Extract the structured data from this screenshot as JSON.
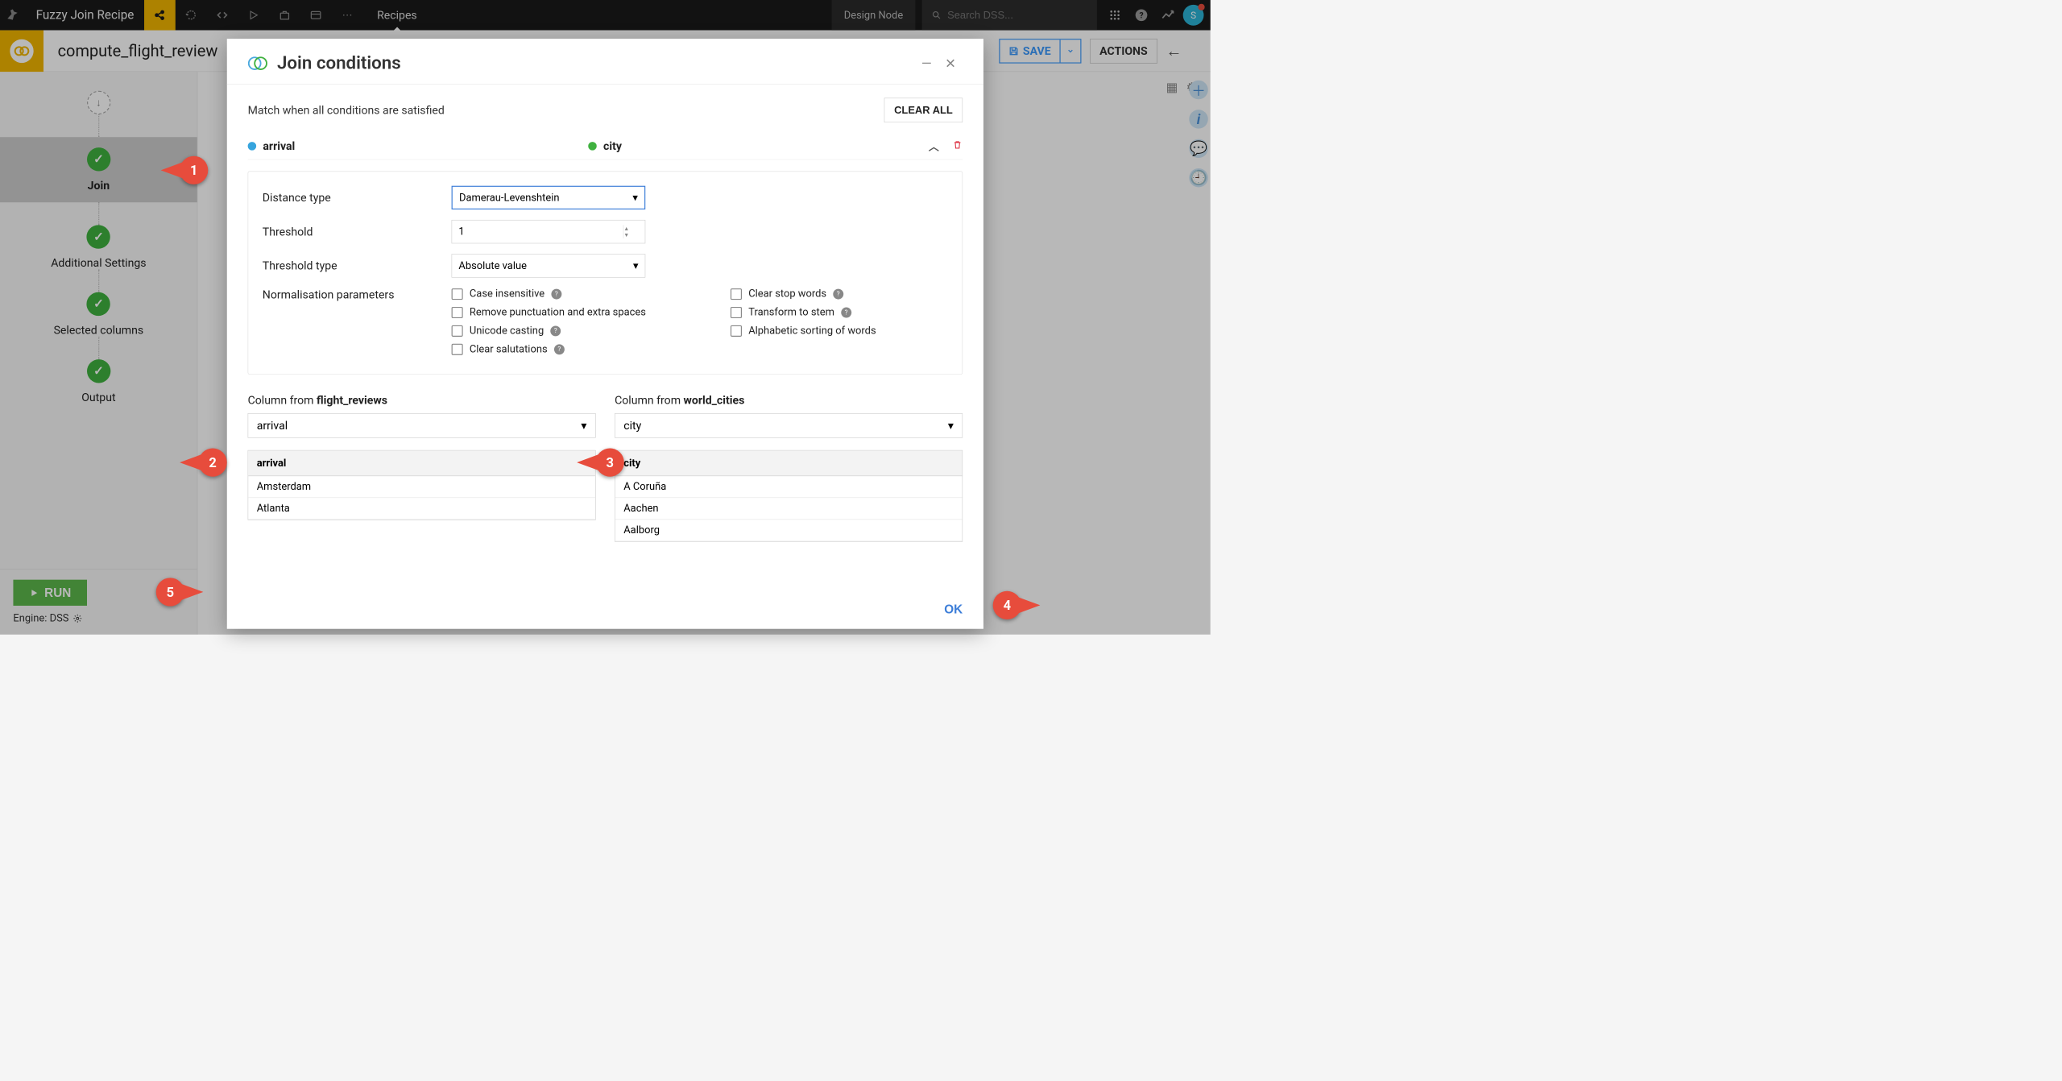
{
  "topbar": {
    "title": "Fuzzy Join Recipe",
    "recipes": "Recipes",
    "design_node": "Design Node",
    "search_placeholder": "Search DSS...",
    "user_initial": "S"
  },
  "subbar": {
    "recipe_title": "compute_flight_review",
    "save": "SAVE",
    "actions": "ACTIONS"
  },
  "sidebar": {
    "steps": [
      "Join",
      "Additional Settings",
      "Selected columns",
      "Output"
    ],
    "active_index": 0,
    "run": "RUN",
    "engine": "Engine: DSS"
  },
  "modal": {
    "title": "Join conditions",
    "subtitle": "Match when all conditions are satisfied",
    "clear_all": "CLEAR ALL",
    "left_col": "arrival",
    "right_col": "city",
    "distance_type_label": "Distance type",
    "distance_type_value": "Damerau-Levenshtein",
    "threshold_label": "Threshold",
    "threshold_value": "1",
    "threshold_type_label": "Threshold type",
    "threshold_type_value": "Absolute value",
    "norm_label": "Normalisation parameters",
    "norm_left": [
      "Case insensitive",
      "Remove punctuation and extra spaces",
      "Unicode casting",
      "Clear salutations"
    ],
    "norm_left_help": [
      true,
      false,
      true,
      true
    ],
    "norm_right": [
      "Clear stop words",
      "Transform to stem",
      "Alphabetic sorting of words"
    ],
    "norm_right_help": [
      true,
      true,
      false
    ],
    "column_from": "Column from",
    "left_dataset": "flight_reviews",
    "right_dataset": "world_cities",
    "left_sel": "arrival",
    "right_sel": "city",
    "left_preview_header": "arrival",
    "right_preview_header": "city",
    "left_preview": [
      "Amsterdam",
      "Atlanta"
    ],
    "right_preview": [
      "A Coruña",
      "Aachen",
      "Aalborg"
    ],
    "ok": "OK"
  },
  "callouts": {
    "one": "1",
    "two": "2",
    "three": "3",
    "four": "4",
    "five": "5"
  },
  "colors": {
    "accent_blue": "#3b99fc",
    "accent_green": "#3fb13f",
    "callout_red": "#e74c3c",
    "run_green": "#5cb84b",
    "yellow": "#f0b400"
  }
}
